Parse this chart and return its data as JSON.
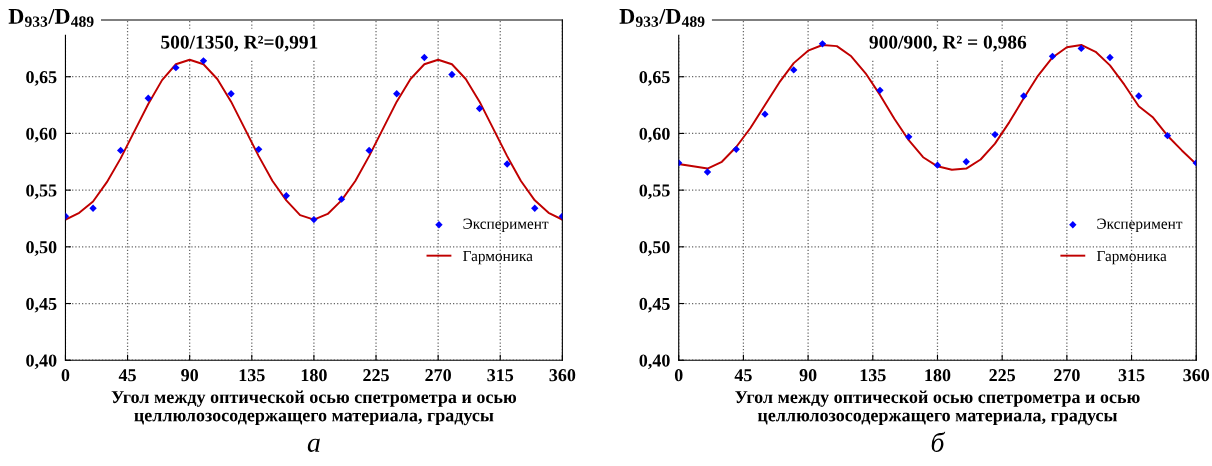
{
  "chart_data": [
    {
      "type": "scatter",
      "xlabel": "Угол между оптической осью спетрометра и осью\nцеллюлозосодержащего материала, градусы",
      "ylabel": "D$_{933}$/D$_{489}$",
      "annotations": [
        "500/1350, R²=0,991",
        "а"
      ],
      "xlim": [
        0,
        360
      ],
      "xticks": [
        0,
        45,
        90,
        135,
        180,
        225,
        270,
        315,
        360
      ],
      "ylim": [
        0.4,
        0.7
      ],
      "yticks": [
        {
          "value": 0.4,
          "label": "0,40"
        },
        {
          "value": 0.45,
          "label": "0,45"
        },
        {
          "value": 0.5,
          "label": "0,50"
        },
        {
          "value": 0.55,
          "label": "0,55"
        },
        {
          "value": 0.6,
          "label": "0,60"
        },
        {
          "value": 0.65,
          "label": "0,65"
        }
      ],
      "grid": true,
      "legend": "right",
      "series": [
        {
          "name": "Эксперимент",
          "color": "#0000ff",
          "marker": "diamond",
          "x": [
            0,
            20,
            40,
            60,
            80,
            100,
            120,
            140,
            160,
            180,
            200,
            220,
            240,
            260,
            280,
            300,
            320,
            340,
            360
          ],
          "values": [
            0.527,
            0.534,
            0.585,
            0.631,
            0.658,
            0.664,
            0.635,
            0.586,
            0.545,
            0.524,
            0.542,
            0.585,
            0.635,
            0.667,
            0.652,
            0.622,
            0.573,
            0.534,
            0.527
          ]
        },
        {
          "name": "Гармоника",
          "type": "line",
          "color": "#c00000",
          "marker": "none",
          "line_style": "solid",
          "x": [
            0,
            10,
            20,
            30,
            40,
            50,
            60,
            70,
            80,
            90,
            100,
            110,
            120,
            130,
            140,
            150,
            160,
            170,
            180,
            190,
            200,
            210,
            220,
            230,
            240,
            250,
            260,
            270,
            280,
            290,
            300,
            310,
            320,
            330,
            340,
            350,
            360
          ],
          "values": [
            0.524,
            0.53,
            0.54,
            0.557,
            0.578,
            0.602,
            0.626,
            0.647,
            0.661,
            0.665,
            0.661,
            0.648,
            0.628,
            0.604,
            0.58,
            0.558,
            0.541,
            0.528,
            0.524,
            0.529,
            0.541,
            0.558,
            0.58,
            0.604,
            0.628,
            0.648,
            0.661,
            0.665,
            0.661,
            0.648,
            0.628,
            0.604,
            0.58,
            0.558,
            0.541,
            0.53,
            0.524
          ]
        }
      ]
    },
    {
      "type": "scatter",
      "xlabel": "Угол между оптической осью спетрометра и осью\nцеллюлозосодержащего материала, градусы",
      "ylabel": "D$_{933}$/D$_{489}$",
      "annotations": [
        "900/900, R² = 0,986",
        "б"
      ],
      "xlim": [
        0,
        360
      ],
      "xticks": [
        0,
        45,
        90,
        135,
        180,
        225,
        270,
        315,
        360
      ],
      "ylim": [
        0.4,
        0.7
      ],
      "yticks": [
        {
          "value": 0.4,
          "label": "0,40"
        },
        {
          "value": 0.45,
          "label": "0,45"
        },
        {
          "value": 0.5,
          "label": "0,50"
        },
        {
          "value": 0.55,
          "label": "0,55"
        },
        {
          "value": 0.6,
          "label": "0,60"
        },
        {
          "value": 0.65,
          "label": "0,65"
        }
      ],
      "grid": true,
      "legend": "right",
      "series": [
        {
          "name": "Эксперимент",
          "color": "#0000ff",
          "marker": "diamond",
          "x": [
            0,
            20,
            40,
            60,
            80,
            100,
            140,
            160,
            180,
            200,
            220,
            240,
            260,
            280,
            300,
            320,
            340,
            360
          ],
          "values": [
            0.574,
            0.566,
            0.586,
            0.617,
            0.656,
            0.679,
            0.638,
            0.597,
            0.572,
            0.575,
            0.599,
            0.633,
            0.668,
            0.675,
            0.667,
            0.633,
            0.598,
            0.574
          ]
        },
        {
          "name": "Гармоника",
          "type": "line",
          "color": "#c00000",
          "marker": "none",
          "line_style": "solid",
          "x": [
            0,
            10,
            20,
            30,
            40,
            50,
            60,
            70,
            80,
            90,
            100,
            110,
            120,
            130,
            140,
            150,
            160,
            170,
            180,
            190,
            200,
            210,
            220,
            230,
            240,
            250,
            260,
            270,
            280,
            290,
            300,
            310,
            320,
            330,
            340,
            350,
            360
          ],
          "values": [
            0.573,
            0.571,
            0.569,
            0.575,
            0.588,
            0.605,
            0.625,
            0.645,
            0.662,
            0.673,
            0.678,
            0.677,
            0.668,
            0.653,
            0.634,
            0.613,
            0.594,
            0.579,
            0.571,
            0.568,
            0.569,
            0.577,
            0.591,
            0.61,
            0.631,
            0.651,
            0.667,
            0.676,
            0.678,
            0.672,
            0.66,
            0.643,
            0.624,
            0.614,
            0.598,
            0.585,
            0.573
          ]
        }
      ]
    }
  ]
}
